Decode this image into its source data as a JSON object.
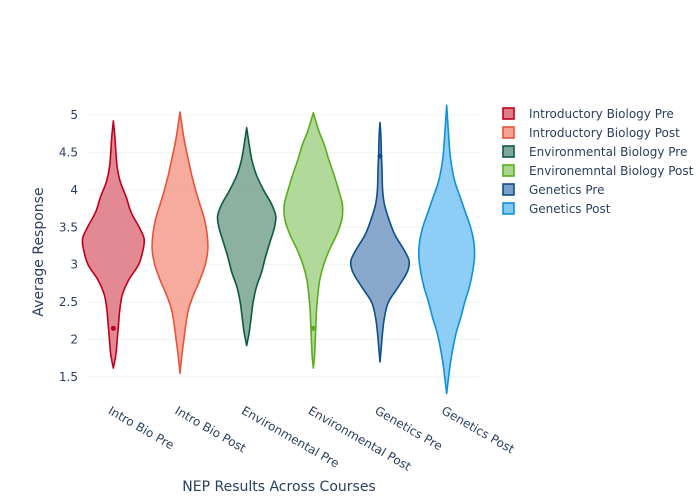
{
  "chart_data": {
    "type": "violin",
    "xlabel": "NEP Results Across Courses",
    "ylabel": "Average Response",
    "ylim": [
      1.3,
      5.2
    ],
    "y_ticks": [
      "1.5",
      "2",
      "2.5",
      "3",
      "3.5",
      "4",
      "4.5",
      "5"
    ],
    "grid": true,
    "legend_position": "right",
    "categories": [
      "Intro Bio Pre",
      "Intro Bio Post",
      "Environmental Pre",
      "Environmental Post",
      "Genetics Pre",
      "Genetics Post"
    ],
    "series": [
      {
        "name": "Introductory Biology Pre",
        "category": "Intro Bio Pre",
        "color": "#c0001a",
        "fill": "#e07c87",
        "min": 1.62,
        "max": 4.92,
        "outlier": 2.15,
        "density": [
          [
            1.62,
            0.02
          ],
          [
            1.8,
            0.08
          ],
          [
            2.0,
            0.12
          ],
          [
            2.2,
            0.16
          ],
          [
            2.4,
            0.2
          ],
          [
            2.6,
            0.28
          ],
          [
            2.8,
            0.48
          ],
          [
            3.0,
            0.78
          ],
          [
            3.2,
            0.92
          ],
          [
            3.35,
            0.95
          ],
          [
            3.5,
            0.8
          ],
          [
            3.7,
            0.55
          ],
          [
            3.9,
            0.4
          ],
          [
            4.1,
            0.22
          ],
          [
            4.3,
            0.12
          ],
          [
            4.5,
            0.08
          ],
          [
            4.7,
            0.05
          ],
          [
            4.92,
            0.02
          ]
        ]
      },
      {
        "name": "Introductory Biology Post",
        "category": "Intro Bio Post",
        "color": "#e8533a",
        "fill": "#f5a294",
        "min": 1.55,
        "max": 5.04,
        "density": [
          [
            1.55,
            0.02
          ],
          [
            1.8,
            0.06
          ],
          [
            2.0,
            0.12
          ],
          [
            2.2,
            0.18
          ],
          [
            2.4,
            0.26
          ],
          [
            2.6,
            0.42
          ],
          [
            2.8,
            0.62
          ],
          [
            3.0,
            0.78
          ],
          [
            3.2,
            0.86
          ],
          [
            3.4,
            0.84
          ],
          [
            3.6,
            0.76
          ],
          [
            3.8,
            0.62
          ],
          [
            4.0,
            0.48
          ],
          [
            4.2,
            0.36
          ],
          [
            4.4,
            0.26
          ],
          [
            4.6,
            0.16
          ],
          [
            4.8,
            0.08
          ],
          [
            5.04,
            0.02
          ]
        ]
      },
      {
        "name": "Environmental Biology Pre",
        "category": "Environmental Pre",
        "color": "#0e5a3d",
        "fill": "#7fa896",
        "min": 1.92,
        "max": 4.83,
        "density": [
          [
            1.92,
            0.02
          ],
          [
            2.1,
            0.08
          ],
          [
            2.3,
            0.14
          ],
          [
            2.5,
            0.2
          ],
          [
            2.7,
            0.3
          ],
          [
            2.9,
            0.46
          ],
          [
            3.1,
            0.58
          ],
          [
            3.3,
            0.72
          ],
          [
            3.5,
            0.86
          ],
          [
            3.65,
            0.9
          ],
          [
            3.8,
            0.78
          ],
          [
            4.0,
            0.52
          ],
          [
            4.2,
            0.3
          ],
          [
            4.4,
            0.16
          ],
          [
            4.6,
            0.08
          ],
          [
            4.83,
            0.02
          ]
        ]
      },
      {
        "name": "Environemntal Biology Post",
        "category": "Environmental Post",
        "color": "#5aad1e",
        "fill": "#a9d58e",
        "min": 1.62,
        "max": 5.03,
        "outlier": 2.15,
        "density": [
          [
            1.62,
            0.02
          ],
          [
            1.8,
            0.04
          ],
          [
            2.0,
            0.06
          ],
          [
            2.2,
            0.08
          ],
          [
            2.4,
            0.1
          ],
          [
            2.6,
            0.14
          ],
          [
            2.8,
            0.2
          ],
          [
            3.0,
            0.32
          ],
          [
            3.2,
            0.5
          ],
          [
            3.4,
            0.72
          ],
          [
            3.6,
            0.88
          ],
          [
            3.8,
            0.9
          ],
          [
            4.0,
            0.78
          ],
          [
            4.2,
            0.64
          ],
          [
            4.4,
            0.48
          ],
          [
            4.6,
            0.34
          ],
          [
            4.8,
            0.16
          ],
          [
            5.03,
            0.02
          ]
        ]
      },
      {
        "name": "Genetics Pre",
        "category": "Genetics Pre",
        "color": "#0d4f8b",
        "fill": "#7c9fc5",
        "min": 1.7,
        "max": 4.9,
        "outlier": 4.45,
        "density": [
          [
            1.7,
            0.02
          ],
          [
            1.9,
            0.04
          ],
          [
            2.1,
            0.08
          ],
          [
            2.3,
            0.14
          ],
          [
            2.5,
            0.26
          ],
          [
            2.7,
            0.56
          ],
          [
            2.9,
            0.84
          ],
          [
            3.05,
            0.9
          ],
          [
            3.2,
            0.74
          ],
          [
            3.4,
            0.46
          ],
          [
            3.6,
            0.28
          ],
          [
            3.8,
            0.14
          ],
          [
            4.0,
            0.08
          ],
          [
            4.3,
            0.06
          ],
          [
            4.5,
            0.04
          ],
          [
            4.7,
            0.03
          ],
          [
            4.9,
            0.02
          ]
        ]
      },
      {
        "name": "Genetics Post",
        "category": "Genetics Post",
        "color": "#0f8fe0",
        "fill": "#82c8f4",
        "min": 1.28,
        "max": 5.13,
        "density": [
          [
            1.28,
            0.02
          ],
          [
            1.5,
            0.06
          ],
          [
            1.7,
            0.12
          ],
          [
            1.9,
            0.2
          ],
          [
            2.1,
            0.3
          ],
          [
            2.3,
            0.44
          ],
          [
            2.5,
            0.56
          ],
          [
            2.7,
            0.7
          ],
          [
            2.9,
            0.8
          ],
          [
            3.1,
            0.86
          ],
          [
            3.3,
            0.84
          ],
          [
            3.5,
            0.74
          ],
          [
            3.7,
            0.58
          ],
          [
            3.9,
            0.42
          ],
          [
            4.1,
            0.26
          ],
          [
            4.3,
            0.16
          ],
          [
            4.5,
            0.1
          ],
          [
            4.8,
            0.05
          ],
          [
            5.13,
            0.02
          ]
        ]
      }
    ]
  }
}
